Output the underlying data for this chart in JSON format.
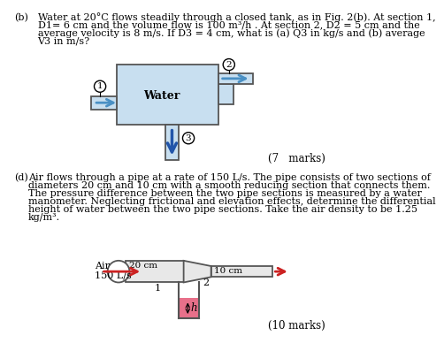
{
  "bg_color": "#ffffff",
  "text_color": "#000000",
  "part_b": {
    "label": "(b)",
    "text_line1": "Water at 20°C flows steadily through a closed tank, as in Fig. 2(b). At section 1,",
    "text_line2": "D1= 6 cm and the volume flow is 100 m³/h . At section 2, D2 = 5 cm and the",
    "text_line3": "average velocity is 8 m/s. If D3 = 4 cm, what is (a) Q3 in kg/s and (b) average",
    "text_line4": "V3 in m/s?",
    "marks": "(7   marks)",
    "tank_color": "#c8dff0",
    "tank_outline": "#555555",
    "arrow_color": "#4a90c4",
    "arrow_down_color": "#2255aa"
  },
  "part_d": {
    "label": "(d)",
    "text_line1": "Air flows through a pipe at a rate of 150 L/s. The pipe consists of two sections of",
    "text_line2": "diameters 20 cm and 10 cm with a smooth reducing section that connects them.",
    "text_line3": "The pressure difference between the two pipe sections is measured by a water",
    "text_line4": "manometer. Neglecting frictional and elevation effects, determine the differential",
    "text_line5": "height of water between the two pipe sections. Take the air density to be 1.25",
    "text_line6": "kg/m³.",
    "marks": "(10 marks)",
    "pipe_fill": "#e8e8e8",
    "pipe_outline": "#555555",
    "water_color": "#e8708a",
    "arrow_color": "#cc2222"
  }
}
